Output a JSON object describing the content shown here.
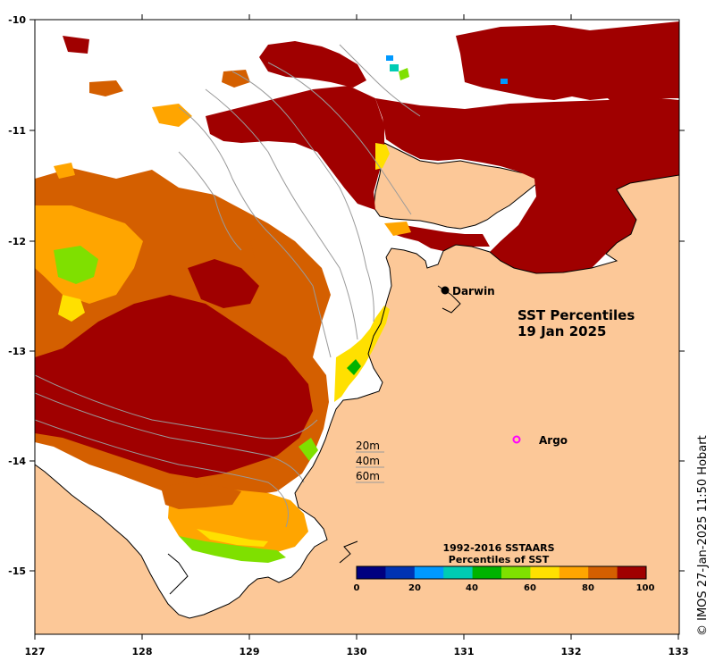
{
  "map": {
    "title_line1": "SST Percentiles",
    "title_line2": "19 Jan 2025",
    "credit": "© IMOS 27-Jan-2025 11:50 Hobart",
    "x_ticks": [
      "127",
      "128",
      "129",
      "130",
      "131",
      "132",
      "133"
    ],
    "y_ticks": [
      "-10",
      "-11",
      "-12",
      "-13",
      "-14",
      "-15"
    ],
    "depth_labels": [
      "20m",
      "40m",
      "60m"
    ],
    "places": {
      "darwin": "Darwin",
      "argo": "Argo"
    },
    "colorbar": {
      "title_line1": "1992-2016 SSTAARS",
      "title_line2": "Percentiles of SST",
      "tick_labels": [
        "0",
        "20",
        "40",
        "60",
        "80",
        "100"
      ],
      "colors": [
        "#000080",
        "#0033b3",
        "#0099ff",
        "#00ccb3",
        "#00b300",
        "#7fe000",
        "#ffe000",
        "#ffa500",
        "#d45f00",
        "#a00000"
      ]
    },
    "colors": {
      "land": "#fcc898",
      "no_data": "#ffffff",
      "coastline": "#000000",
      "bathymetry": "#9a9a9a",
      "darwin_marker": "#000000",
      "argo_marker": "#ff00ff"
    }
  }
}
